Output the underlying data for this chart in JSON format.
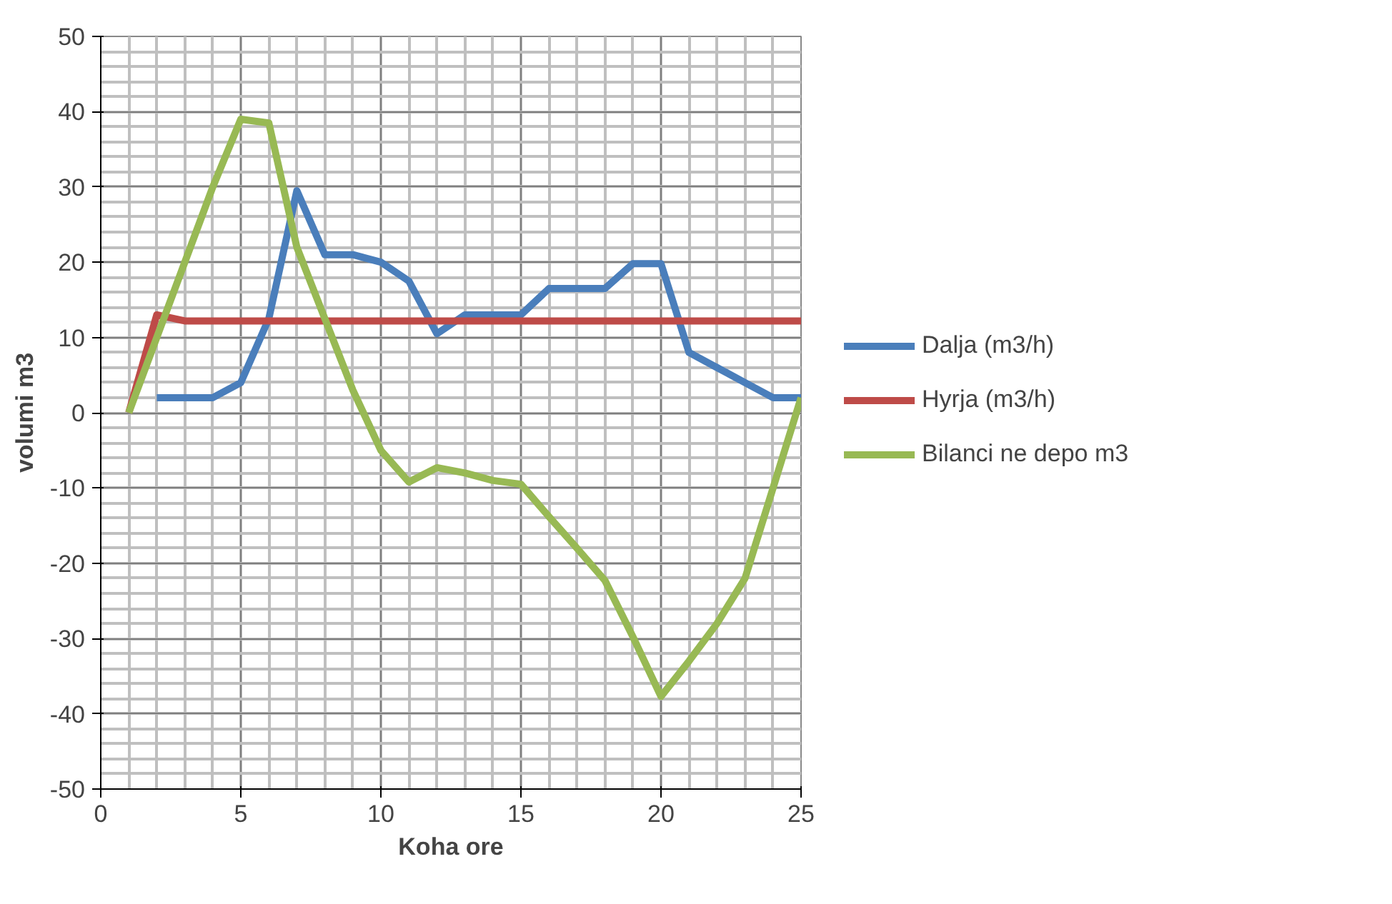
{
  "chart_data": {
    "type": "line",
    "xlabel": "Koha ore",
    "ylabel": "volumi m3",
    "xlim": [
      0,
      25
    ],
    "xticks": [
      0,
      5,
      10,
      15,
      20,
      25
    ],
    "ylim": [
      -50,
      50
    ],
    "yticks": [
      -50,
      -40,
      -30,
      -20,
      -10,
      0,
      10,
      20,
      30,
      40,
      50
    ],
    "grid": true,
    "legend": "right",
    "series": [
      {
        "name": "Dalja (m3/h)",
        "color": "#4a7ebb",
        "x": [
          2,
          3,
          4,
          5,
          6,
          7,
          8,
          9,
          10,
          11,
          12,
          13,
          14,
          15,
          16,
          17,
          18,
          19,
          20,
          21,
          22,
          23,
          24,
          25
        ],
        "values": [
          2,
          2,
          2,
          4,
          12.5,
          29.5,
          21,
          21,
          20,
          17.5,
          10.5,
          13,
          13,
          13,
          16.5,
          16.5,
          16.5,
          19.8,
          19.8,
          8,
          6,
          4,
          2,
          2
        ]
      },
      {
        "name": "Hyrja (m3/h)",
        "color": "#be4b48",
        "x": [
          1,
          2,
          3,
          4,
          5,
          6,
          7,
          8,
          9,
          10,
          11,
          12,
          13,
          14,
          15,
          16,
          17,
          18,
          19,
          20,
          21,
          22,
          23,
          24,
          25
        ],
        "values": [
          0,
          13,
          12.2,
          12.2,
          12.2,
          12.2,
          12.2,
          12.2,
          12.2,
          12.2,
          12.2,
          12.2,
          12.2,
          12.2,
          12.2,
          12.2,
          12.2,
          12.2,
          12.2,
          12.2,
          12.2,
          12.2,
          12.2,
          12.2,
          12.2
        ]
      },
      {
        "name": "Bilanci ne depo m3",
        "color": "#98b954",
        "x": [
          1,
          2,
          3,
          4,
          5,
          6,
          7,
          8,
          9,
          10,
          11,
          12,
          13,
          14,
          15,
          16,
          17,
          18,
          19,
          20,
          21,
          22,
          23,
          24,
          25
        ],
        "values": [
          0,
          10,
          20,
          30,
          39,
          38.5,
          22,
          12.5,
          3,
          -5,
          -9.2,
          -7.3,
          -8,
          -9,
          -9.5,
          -13.8,
          -18,
          -22.3,
          -29.8,
          -37.7,
          -33,
          -28,
          -22,
          -10,
          2
        ]
      }
    ]
  }
}
